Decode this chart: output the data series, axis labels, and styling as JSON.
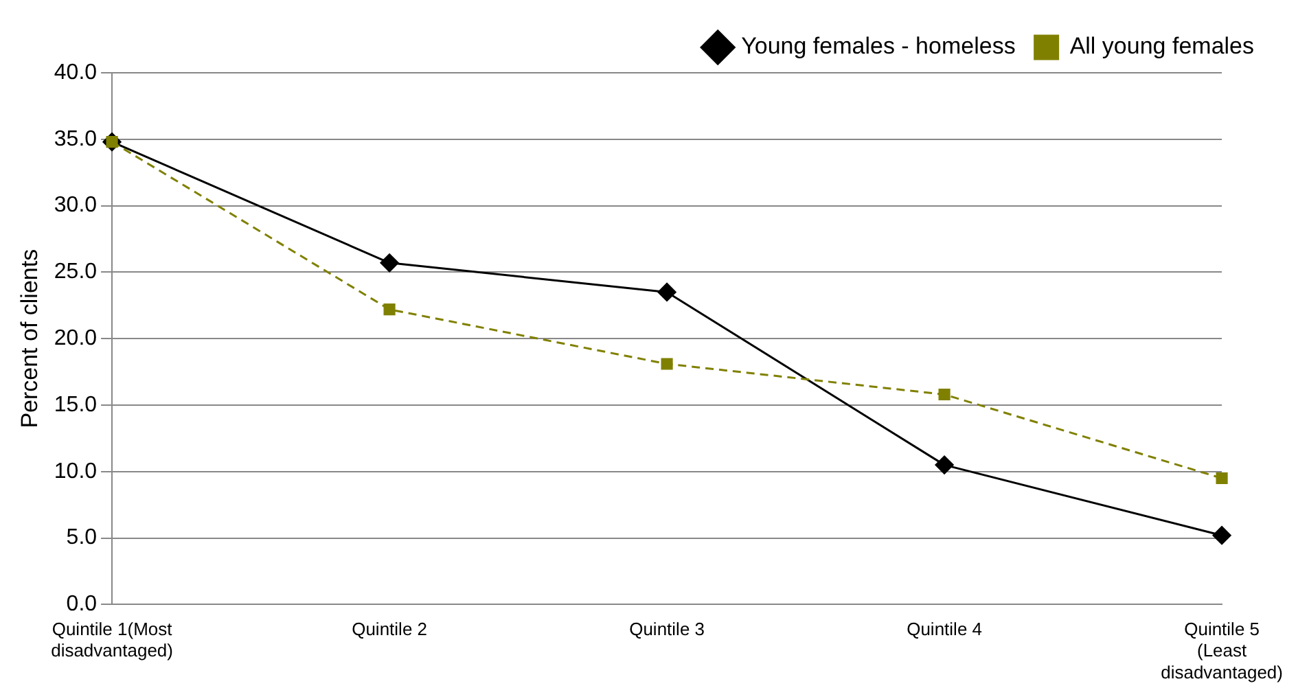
{
  "chart_data": {
    "type": "line",
    "ylabel": "Percent of clients",
    "categories": [
      "Quintile 1(Most disadvantaged)",
      "Quintile 2",
      "Quintile 3",
      "Quintile 4",
      "Quintile 5 (Least disadvantaged)"
    ],
    "series": [
      {
        "name": "Young females - homeless",
        "color": "#000000",
        "marker": "diamond",
        "line_style": "solid",
        "values": [
          34.8,
          25.7,
          23.5,
          10.5,
          5.2
        ]
      },
      {
        "name": "All young females",
        "color": "#808000",
        "marker": "square",
        "line_style": "dashed",
        "values": [
          34.8,
          22.2,
          18.1,
          15.8,
          9.5
        ]
      }
    ],
    "ylim": [
      0,
      40
    ],
    "yticks": [
      {
        "value": 0,
        "label": "0.0"
      },
      {
        "value": 5,
        "label": "5.0"
      },
      {
        "value": 10,
        "label": "10.0"
      },
      {
        "value": 15,
        "label": "15.0"
      },
      {
        "value": 20,
        "label": "20.0"
      },
      {
        "value": 25,
        "label": "25.0"
      },
      {
        "value": 30,
        "label": "30.0"
      },
      {
        "value": 35,
        "label": "35.0"
      },
      {
        "value": 40,
        "label": "40.0"
      }
    ],
    "grid": "y",
    "legend": "top right"
  }
}
